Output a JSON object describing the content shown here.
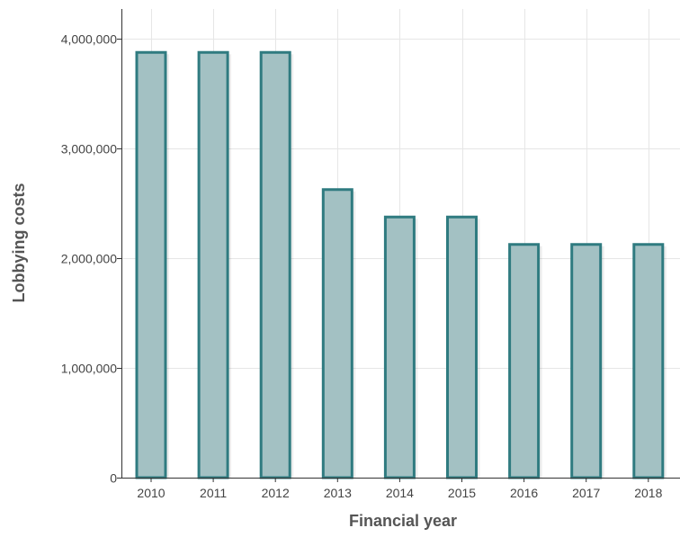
{
  "chart_data": {
    "type": "bar",
    "categories": [
      "2010",
      "2011",
      "2012",
      "2013",
      "2014",
      "2015",
      "2016",
      "2017",
      "2018"
    ],
    "values": [
      3875000,
      3875000,
      3875000,
      2625000,
      2375000,
      2375000,
      2125000,
      2125000,
      2125000
    ],
    "xlabel": "Financial year",
    "ylabel": "Lobbying costs",
    "ylim": [
      0,
      4000000
    ],
    "yticks": [
      0,
      1000000,
      2000000,
      3000000,
      4000000
    ],
    "ytick_labels": [
      "0",
      "1,000,000",
      "2,000,000",
      "3,000,000",
      "4,000,000"
    ],
    "grid": true,
    "legend": "none",
    "colors": {
      "bar_fill": "#a3c1c3",
      "bar_stroke": "#2f7b80",
      "grid": "#e6e6e6",
      "axis": "#333333"
    }
  }
}
